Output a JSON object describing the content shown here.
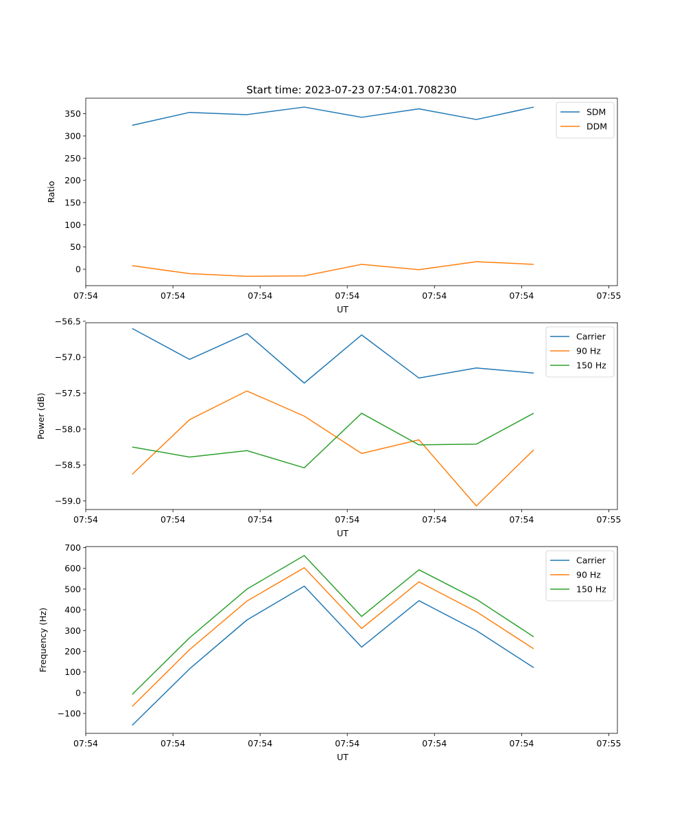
{
  "figure_title": "Start time: 2023-07-23 07:54:01.708230",
  "colors": {
    "blue": "#1f77b4",
    "orange": "#ff7f0e",
    "green": "#2ca02c"
  },
  "chart_data": [
    {
      "type": "line",
      "title": "Start time: 2023-07-23 07:54:01.708230",
      "xlabel": "UT",
      "ylabel": "Ratio",
      "x": [
        1,
        2,
        3,
        4,
        5,
        6,
        7,
        8
      ],
      "xlim": [
        0.19,
        9.46
      ],
      "xticks": [
        0.19,
        1.71,
        3.23,
        4.75,
        6.27,
        7.79,
        9.31
      ],
      "xtick_labels": [
        "07:54",
        "07:54",
        "07:54",
        "07:54",
        "07:54",
        "07:54",
        "07:55"
      ],
      "ylim": [
        -37,
        385
      ],
      "yticks": [
        0,
        50,
        100,
        150,
        200,
        250,
        300,
        350
      ],
      "ytick_labels": [
        "0",
        "50",
        "100",
        "150",
        "200",
        "250",
        "300",
        "350"
      ],
      "legend": "top-right",
      "series": [
        {
          "name": "SDM",
          "color": "#1f77b4",
          "values": [
            324,
            353,
            348,
            365,
            342,
            361,
            337,
            365
          ]
        },
        {
          "name": "DDM",
          "color": "#ff7f0e",
          "values": [
            8,
            -10,
            -16,
            -15,
            11,
            -1,
            17,
            11
          ]
        }
      ]
    },
    {
      "type": "line",
      "title": "",
      "xlabel": "UT",
      "ylabel": "Power (dB)",
      "x": [
        1,
        2,
        3,
        4,
        5,
        6,
        7,
        8
      ],
      "xlim": [
        0.19,
        9.46
      ],
      "xticks": [
        0.19,
        1.71,
        3.23,
        4.75,
        6.27,
        7.79,
        9.31
      ],
      "xtick_labels": [
        "07:54",
        "07:54",
        "07:54",
        "07:54",
        "07:54",
        "07:54",
        "07:55"
      ],
      "ylim": [
        -59.12,
        -56.52
      ],
      "yticks": [
        -59.0,
        -58.5,
        -58.0,
        -57.5,
        -57.0,
        -56.5
      ],
      "ytick_labels": [
        "−59.0",
        "−58.5",
        "−58.0",
        "−57.5",
        "−57.0",
        "−56.5"
      ],
      "legend": "top-right",
      "series": [
        {
          "name": "Carrier",
          "color": "#1f77b4",
          "values": [
            -56.6,
            -57.03,
            -56.67,
            -57.36,
            -56.69,
            -57.29,
            -57.15,
            -57.22
          ]
        },
        {
          "name": "90 Hz",
          "color": "#ff7f0e",
          "values": [
            -58.63,
            -57.87,
            -57.47,
            -57.82,
            -58.34,
            -58.15,
            -59.07,
            -58.29
          ]
        },
        {
          "name": "150 Hz",
          "color": "#2ca02c",
          "values": [
            -58.25,
            -58.39,
            -58.3,
            -58.54,
            -57.78,
            -58.22,
            -58.21,
            -57.78
          ]
        }
      ]
    },
    {
      "type": "line",
      "title": "",
      "xlabel": "UT",
      "ylabel": "Frequency (Hz)",
      "x": [
        1,
        2,
        3,
        4,
        5,
        6,
        7,
        8
      ],
      "xlim": [
        0.19,
        9.46
      ],
      "xticks": [
        0.19,
        1.71,
        3.23,
        4.75,
        6.27,
        7.79,
        9.31
      ],
      "xtick_labels": [
        "07:54",
        "07:54",
        "07:54",
        "07:54",
        "07:54",
        "07:54",
        "07:55"
      ],
      "ylim": [
        -196,
        705
      ],
      "yticks": [
        -100,
        0,
        100,
        200,
        300,
        400,
        500,
        600,
        700
      ],
      "ytick_labels": [
        "−100",
        "0",
        "100",
        "200",
        "300",
        "400",
        "500",
        "600",
        "700"
      ],
      "legend": "top-right",
      "series": [
        {
          "name": "Carrier",
          "color": "#1f77b4",
          "values": [
            -157,
            115,
            351,
            514,
            220,
            444,
            300,
            121
          ]
        },
        {
          "name": "90 Hz",
          "color": "#ff7f0e",
          "values": [
            -66,
            208,
            442,
            603,
            310,
            535,
            391,
            212
          ]
        },
        {
          "name": "150 Hz",
          "color": "#2ca02c",
          "values": [
            -8,
            265,
            500,
            662,
            368,
            593,
            451,
            270
          ]
        }
      ]
    }
  ]
}
